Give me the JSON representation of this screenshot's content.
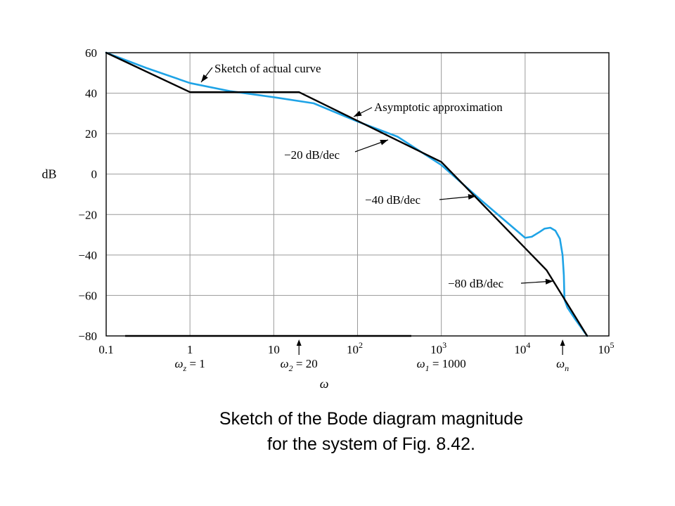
{
  "chart_data": {
    "type": "line",
    "x_scale": "log",
    "xlim": [
      0.1,
      100000
    ],
    "ylim": [
      -80,
      60
    ],
    "xlabel": "ω",
    "ylabel": "dB",
    "grid": true,
    "x_ticks": [
      {
        "value": 0.1,
        "base": "0.1",
        "exp": ""
      },
      {
        "value": 1,
        "base": "1",
        "exp": ""
      },
      {
        "value": 10,
        "base": "10",
        "exp": ""
      },
      {
        "value": 100,
        "base": "10",
        "exp": "2"
      },
      {
        "value": 1000,
        "base": "10",
        "exp": "3"
      },
      {
        "value": 10000,
        "base": "10",
        "exp": "4"
      },
      {
        "value": 100000,
        "base": "10",
        "exp": "5"
      }
    ],
    "y_ticks": [
      {
        "value": 60,
        "label": "60"
      },
      {
        "value": 40,
        "label": "40"
      },
      {
        "value": 20,
        "label": "20"
      },
      {
        "value": 0,
        "label": "0"
      },
      {
        "value": -20,
        "label": "−20"
      },
      {
        "value": -40,
        "label": "−40"
      },
      {
        "value": -60,
        "label": "−60"
      },
      {
        "value": -80,
        "label": "−80"
      }
    ],
    "series": [
      {
        "color": "#000000",
        "points": [
          [
            0.1,
            60
          ],
          [
            1,
            40.5
          ],
          [
            20,
            40.5
          ],
          [
            1000,
            6
          ],
          [
            18000,
            -47.5
          ],
          [
            55000,
            -80
          ]
        ]
      },
      {
        "color": "#1EA3E6",
        "points": [
          [
            0.1,
            60
          ],
          [
            0.3,
            52.5
          ],
          [
            1,
            45
          ],
          [
            3,
            41
          ],
          [
            10,
            38
          ],
          [
            30,
            35
          ],
          [
            100,
            26
          ],
          [
            300,
            18.5
          ],
          [
            1000,
            4.5
          ],
          [
            3000,
            -13
          ],
          [
            10000,
            -31.5
          ],
          [
            12000,
            -31
          ],
          [
            15000,
            -28.5
          ],
          [
            17000,
            -27
          ],
          [
            20000,
            -26.5
          ],
          [
            23000,
            -28
          ],
          [
            26000,
            -32
          ],
          [
            28000,
            -40
          ],
          [
            29000,
            -50
          ],
          [
            29500,
            -62
          ],
          [
            32000,
            -66
          ],
          [
            40000,
            -72
          ],
          [
            55000,
            -80
          ]
        ]
      }
    ],
    "annotations": [
      {
        "text": "Sketch of actual curve"
      },
      {
        "text": "Asymptotic approximation"
      },
      {
        "text": "−20 dB/dec"
      },
      {
        "text": "−40 dB/dec"
      },
      {
        "text": "−80 dB/dec"
      }
    ],
    "corner_markers": [
      {
        "value": 1,
        "var": "ω",
        "sub": "z",
        "rest": " = 1",
        "arrow": false
      },
      {
        "value": 20,
        "var": "ω",
        "sub": "2",
        "rest": " = 20",
        "arrow": true
      },
      {
        "value": 1000,
        "var": "ω",
        "sub": "1",
        "rest": " = 1000",
        "arrow": false
      },
      {
        "value": 28000,
        "var": "ω",
        "sub": "n",
        "rest": "",
        "arrow": true
      }
    ]
  },
  "caption": {
    "line1": "Sketch of the Bode diagram magnitude",
    "line2": "for the system of Fig. 8.42."
  }
}
